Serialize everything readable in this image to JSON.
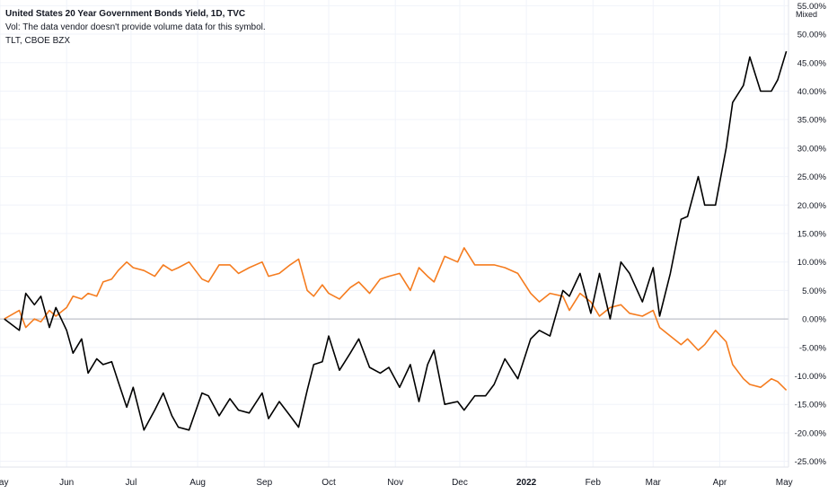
{
  "header": {
    "title": "United States 20 Year Government Bonds Yield, 1D, TVC",
    "volume_note": "Vol: The data vendor doesn't provide volume data for this symbol.",
    "compare_symbol": "TLT, CBOE BZX"
  },
  "scale_mode": "Mixed",
  "colors": {
    "yield_series": "#000000",
    "tlt_series": "#f57c1f",
    "grid": "#f0f3fa",
    "zero_line": "#b2b5be",
    "axis_text": "#131722",
    "background": "#ffffff"
  },
  "chart_data": {
    "type": "line",
    "title": "United States 20 Year Government Bonds Yield, 1D, TVC",
    "y_unit": "percent change",
    "ylim": [
      -26,
      56
    ],
    "y_ticks": [
      "55.00%",
      "50.00%",
      "45.00%",
      "40.00%",
      "35.00%",
      "30.00%",
      "25.00%",
      "20.00%",
      "15.00%",
      "10.00%",
      "5.00%",
      "0.00%",
      "-5.00%",
      "-10.00%",
      "-15.00%",
      "-20.00%",
      "-25.00%"
    ],
    "y_tick_values": [
      55,
      50,
      45,
      40,
      35,
      30,
      25,
      20,
      15,
      10,
      5,
      0,
      -5,
      -10,
      -15,
      -20,
      -25
    ],
    "x_ticks": [
      "May",
      "Jun",
      "Jul",
      "Aug",
      "Sep",
      "Oct",
      "Nov",
      "Dec",
      "2022",
      "Feb",
      "Mar",
      "Apr",
      "May"
    ],
    "x_tick_dates": [
      "2021-05-01",
      "2021-06-01",
      "2021-07-01",
      "2021-08-01",
      "2021-09-01",
      "2021-10-01",
      "2021-11-01",
      "2021-12-01",
      "2022-01-01",
      "2022-02-01",
      "2022-03-01",
      "2022-04-01",
      "2022-05-01"
    ],
    "x_range": [
      "2021-05-01",
      "2022-05-03"
    ],
    "grid": true,
    "series": [
      {
        "name": "United States 20 Year Government Bonds Yield",
        "x": [
          "2021-05-03",
          "2021-05-10",
          "2021-05-13",
          "2021-05-17",
          "2021-05-20",
          "2021-05-24",
          "2021-05-27",
          "2021-06-01",
          "2021-06-04",
          "2021-06-08",
          "2021-06-11",
          "2021-06-15",
          "2021-06-18",
          "2021-06-22",
          "2021-06-25",
          "2021-06-29",
          "2021-07-02",
          "2021-07-07",
          "2021-07-12",
          "2021-07-16",
          "2021-07-20",
          "2021-07-23",
          "2021-07-28",
          "2021-08-03",
          "2021-08-06",
          "2021-08-11",
          "2021-08-16",
          "2021-08-20",
          "2021-08-25",
          "2021-08-31",
          "2021-09-03",
          "2021-09-08",
          "2021-09-13",
          "2021-09-17",
          "2021-09-21",
          "2021-09-24",
          "2021-09-28",
          "2021-10-01",
          "2021-10-06",
          "2021-10-11",
          "2021-10-15",
          "2021-10-20",
          "2021-10-25",
          "2021-10-29",
          "2021-11-03",
          "2021-11-08",
          "2021-11-12",
          "2021-11-16",
          "2021-11-19",
          "2021-11-24",
          "2021-11-30",
          "2021-12-03",
          "2021-12-08",
          "2021-12-13",
          "2021-12-17",
          "2021-12-22",
          "2021-12-28",
          "2022-01-03",
          "2022-01-07",
          "2022-01-12",
          "2022-01-18",
          "2022-01-21",
          "2022-01-26",
          "2022-01-31",
          "2022-02-04",
          "2022-02-09",
          "2022-02-14",
          "2022-02-18",
          "2022-02-24",
          "2022-03-01",
          "2022-03-04",
          "2022-03-09",
          "2022-03-14",
          "2022-03-17",
          "2022-03-22",
          "2022-03-25",
          "2022-03-30",
          "2022-04-04",
          "2022-04-07",
          "2022-04-12",
          "2022-04-15",
          "2022-04-20",
          "2022-04-25",
          "2022-04-28",
          "2022-05-02"
        ],
        "values": [
          0.0,
          -2.0,
          4.5,
          2.5,
          4.0,
          -1.5,
          2.0,
          -2.0,
          -6.0,
          -3.5,
          -9.5,
          -7.0,
          -8.0,
          -7.5,
          -11.0,
          -15.5,
          -12.0,
          -19.5,
          -16.0,
          -13.0,
          -17.0,
          -19.0,
          -19.5,
          -13.0,
          -13.5,
          -17.0,
          -14.0,
          -16.0,
          -16.5,
          -13.0,
          -17.5,
          -14.5,
          -17.0,
          -19.0,
          -12.5,
          -8.0,
          -7.5,
          -3.0,
          -9.0,
          -6.0,
          -3.5,
          -8.5,
          -9.5,
          -8.5,
          -12.0,
          -8.0,
          -14.5,
          -8.0,
          -5.5,
          -15.0,
          -14.5,
          -16.0,
          -13.5,
          -13.5,
          -11.5,
          -7.0,
          -10.5,
          -3.5,
          -2.0,
          -3.0,
          5.0,
          4.0,
          8.0,
          1.0,
          8.0,
          0.0,
          10.0,
          8.0,
          3.0,
          9.0,
          0.5,
          8.0,
          17.5,
          18.0,
          25.0,
          20.0,
          20.0,
          30.0,
          38.0,
          41.0,
          46.0,
          40.0,
          40.0,
          42.0,
          47.0
        ]
      },
      {
        "name": "TLT, CBOE BZX",
        "x": [
          "2021-05-03",
          "2021-05-10",
          "2021-05-13",
          "2021-05-17",
          "2021-05-20",
          "2021-05-24",
          "2021-05-27",
          "2021-06-01",
          "2021-06-04",
          "2021-06-08",
          "2021-06-11",
          "2021-06-15",
          "2021-06-18",
          "2021-06-22",
          "2021-06-25",
          "2021-06-29",
          "2021-07-02",
          "2021-07-07",
          "2021-07-12",
          "2021-07-16",
          "2021-07-20",
          "2021-07-23",
          "2021-07-28",
          "2021-08-03",
          "2021-08-06",
          "2021-08-11",
          "2021-08-16",
          "2021-08-20",
          "2021-08-25",
          "2021-08-31",
          "2021-09-03",
          "2021-09-08",
          "2021-09-13",
          "2021-09-17",
          "2021-09-21",
          "2021-09-24",
          "2021-09-28",
          "2021-10-01",
          "2021-10-06",
          "2021-10-11",
          "2021-10-15",
          "2021-10-20",
          "2021-10-25",
          "2021-10-29",
          "2021-11-03",
          "2021-11-08",
          "2021-11-12",
          "2021-11-16",
          "2021-11-19",
          "2021-11-24",
          "2021-11-30",
          "2021-12-03",
          "2021-12-08",
          "2021-12-13",
          "2021-12-17",
          "2021-12-22",
          "2021-12-28",
          "2022-01-03",
          "2022-01-07",
          "2022-01-12",
          "2022-01-18",
          "2022-01-21",
          "2022-01-26",
          "2022-01-31",
          "2022-02-04",
          "2022-02-09",
          "2022-02-14",
          "2022-02-18",
          "2022-02-24",
          "2022-03-01",
          "2022-03-04",
          "2022-03-09",
          "2022-03-14",
          "2022-03-17",
          "2022-03-22",
          "2022-03-25",
          "2022-03-30",
          "2022-04-04",
          "2022-04-07",
          "2022-04-12",
          "2022-04-15",
          "2022-04-20",
          "2022-04-25",
          "2022-04-28",
          "2022-05-02"
        ],
        "values": [
          0.0,
          1.5,
          -1.5,
          0.0,
          -0.5,
          1.5,
          0.5,
          2.0,
          4.0,
          3.5,
          4.5,
          4.0,
          6.5,
          7.0,
          8.5,
          10.0,
          9.0,
          8.5,
          7.5,
          9.5,
          8.5,
          9.0,
          10.0,
          7.0,
          6.5,
          9.5,
          9.5,
          8.0,
          9.0,
          10.0,
          7.5,
          8.0,
          9.5,
          10.5,
          5.0,
          4.0,
          6.0,
          4.5,
          3.5,
          5.5,
          6.5,
          4.5,
          7.0,
          7.5,
          8.0,
          5.0,
          9.0,
          7.5,
          6.5,
          11.0,
          10.0,
          12.5,
          9.5,
          9.5,
          9.5,
          9.0,
          8.0,
          4.5,
          3.0,
          4.5,
          4.0,
          1.5,
          4.5,
          3.0,
          0.5,
          2.0,
          2.5,
          1.0,
          0.5,
          1.5,
          -1.5,
          -3.0,
          -4.5,
          -3.5,
          -5.5,
          -4.5,
          -2.0,
          -4.0,
          -8.0,
          -10.5,
          -11.5,
          -12.0,
          -10.5,
          -11.0,
          -12.5
        ]
      }
    ]
  }
}
